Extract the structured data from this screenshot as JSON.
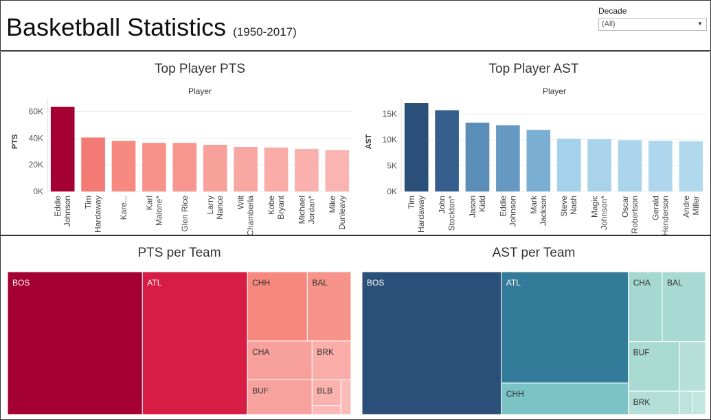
{
  "header": {
    "title": "Basketball Statistics",
    "subtitle": "(1950-2017)",
    "filter_label": "Decade",
    "filter_value": "(All)"
  },
  "chart_data": [
    {
      "type": "bar",
      "title": "Top Player PTS",
      "column_header": "Player",
      "ylabel": "PTS",
      "yticks": [
        "60K",
        "40K",
        "20K",
        "0K"
      ],
      "ylim": [
        0,
        68000
      ],
      "categories": [
        "Eddie Johnson",
        "Tim Hardaway",
        "Kare...",
        "Karl Malone*",
        "Glen Rice",
        "Larry Nance",
        "Wilt Chamberla",
        "Kobe Bryant",
        "Michael Jordan*",
        "Mike Dunleavy"
      ],
      "tick_lines": [
        [
          "Eddie",
          "Johnson"
        ],
        [
          "Tim",
          "Hardaway"
        ],
        [
          "Kare..."
        ],
        [
          "Karl",
          "Malone*"
        ],
        [
          "Glen Rice"
        ],
        [
          "Larry",
          "Nance"
        ],
        [
          "Wilt",
          "Chamberla"
        ],
        [
          "Kobe",
          "Bryant"
        ],
        [
          "Michael",
          "Jordan*"
        ],
        [
          "Mike",
          "Dunleavy"
        ]
      ],
      "values": [
        63500,
        40500,
        38000,
        36500,
        36500,
        35000,
        33500,
        33000,
        32000,
        31000
      ],
      "colors": [
        "#a50034",
        "#f47b73",
        "#f68a80",
        "#f6928a",
        "#f7968e",
        "#f8a09a",
        "#f8a7a3",
        "#f9aca8",
        "#fab0ad",
        "#fab4b1"
      ]
    },
    {
      "type": "bar",
      "title": "Top Player AST",
      "column_header": "Player",
      "ylabel": "AST",
      "yticks": [
        "15K",
        "10K",
        "5K",
        "0K"
      ],
      "ylim": [
        0,
        17500
      ],
      "categories": [
        "Tim Hardaway",
        "John Stockton*",
        "Jason Kidd",
        "Eddie Johnson",
        "Mark Jackson",
        "Steve Nash",
        "Magic Johnson*",
        "Oscar Robertson",
        "Gerald Henderson",
        "Andre Miller"
      ],
      "tick_lines": [
        [
          "Tim",
          "Hardaway"
        ],
        [
          "John",
          "Stockton*"
        ],
        [
          "Jason",
          "Kidd"
        ],
        [
          "Eddie",
          "Johnson"
        ],
        [
          "Mark",
          "Jackson"
        ],
        [
          "Steve",
          "Nash"
        ],
        [
          "Magic",
          "Johnson*"
        ],
        [
          "Oscar",
          "Robertson"
        ],
        [
          "Gerald",
          "Henderson"
        ],
        [
          "Andre",
          "Miller"
        ]
      ],
      "values": [
        17100,
        15700,
        13300,
        12800,
        11900,
        10200,
        10100,
        9900,
        9800,
        9700
      ],
      "colors": [
        "#2a4f79",
        "#365e8d",
        "#5a8db8",
        "#6699c2",
        "#7aaed3",
        "#a5d1ea",
        "#a8d3eb",
        "#abd5ec",
        "#aed7ed",
        "#b1d9ee"
      ]
    },
    {
      "type": "treemap",
      "title": "PTS per Team",
      "cells": [
        {
          "label": "BOS",
          "color": "#a50034",
          "x0": 0,
          "x1": 0.3926,
          "y0": 0,
          "y1": 1,
          "text": "light"
        },
        {
          "label": "ATL",
          "color": "#d71d44",
          "x0": 0.3926,
          "x1": 0.6982,
          "y0": 0,
          "y1": 1,
          "text": "light"
        },
        {
          "label": "CHH",
          "color": "#f6887e",
          "x0": 0.6982,
          "x1": 0.8727,
          "y0": 0,
          "y1": 0.485,
          "text": "dark"
        },
        {
          "label": "BAL",
          "color": "#f6938a",
          "x0": 0.8727,
          "x1": 1,
          "y0": 0,
          "y1": 0.485,
          "text": "dark"
        },
        {
          "label": "CHA",
          "color": "#f8a09b",
          "x0": 0.6982,
          "x1": 0.8866,
          "y0": 0.485,
          "y1": 0.757,
          "text": "dark"
        },
        {
          "label": "BUF",
          "color": "#f8a29d",
          "x0": 0.6982,
          "x1": 0.8866,
          "y0": 0.757,
          "y1": 1,
          "text": "dark"
        },
        {
          "label": "BRK",
          "color": "#faada9",
          "x0": 0.8866,
          "x1": 1,
          "y0": 0.485,
          "y1": 0.757,
          "text": "dark"
        },
        {
          "label": "BLB",
          "color": "#fab2af",
          "x0": 0.8866,
          "x1": 0.9705,
          "y0": 0.757,
          "y1": 0.936,
          "text": "dark"
        },
        {
          "label": "",
          "color": "#fbbab7",
          "x0": 0.8866,
          "x1": 0.9705,
          "y0": 0.936,
          "y1": 1,
          "text": "dark"
        },
        {
          "label": "",
          "color": "#fbbcb9",
          "x0": 0.9705,
          "x1": 1,
          "y0": 0.757,
          "y1": 1,
          "text": "dark"
        }
      ]
    },
    {
      "type": "treemap",
      "title": "AST per Team",
      "cells": [
        {
          "label": "BOS",
          "color": "#2a4f79",
          "x0": 0,
          "x1": 0.4056,
          "y0": 0,
          "y1": 1,
          "text": "light"
        },
        {
          "label": "ATL",
          "color": "#337c99",
          "x0": 0.4056,
          "x1": 0.7752,
          "y0": 0,
          "y1": 0.7791,
          "text": "light"
        },
        {
          "label": "CHH",
          "color": "#7cc3c5",
          "x0": 0.4056,
          "x1": 0.7752,
          "y0": 0.7791,
          "y1": 1,
          "text": "dark"
        },
        {
          "label": "CHA",
          "color": "#a5d8d0",
          "x0": 0.7752,
          "x1": 0.8741,
          "y0": 0,
          "y1": 0.4884,
          "text": "dark"
        },
        {
          "label": "BAL",
          "color": "#a8dad3",
          "x0": 0.8741,
          "x1": 1,
          "y0": 0,
          "y1": 0.4884,
          "text": "dark"
        },
        {
          "label": "BUF",
          "color": "#a9dbd3",
          "x0": 0.7752,
          "x1": 0.9244,
          "y0": 0.4884,
          "y1": 0.8372,
          "text": "dark"
        },
        {
          "label": "BRK",
          "color": "#b3dfd8",
          "x0": 0.7752,
          "x1": 0.9244,
          "y0": 0.8372,
          "y1": 1,
          "text": "dark"
        },
        {
          "label": "",
          "color": "#b6e0d9",
          "x0": 0.9244,
          "x1": 1,
          "y0": 0.4884,
          "y1": 0.8372,
          "text": "dark"
        },
        {
          "label": "",
          "color": "#bde3dd",
          "x0": 0.9244,
          "x1": 0.9612,
          "y0": 0.8372,
          "y1": 1,
          "text": "dark"
        },
        {
          "label": "",
          "color": "#c2e6e0",
          "x0": 0.9612,
          "x1": 1,
          "y0": 0.8372,
          "y1": 1,
          "text": "dark"
        }
      ]
    }
  ]
}
